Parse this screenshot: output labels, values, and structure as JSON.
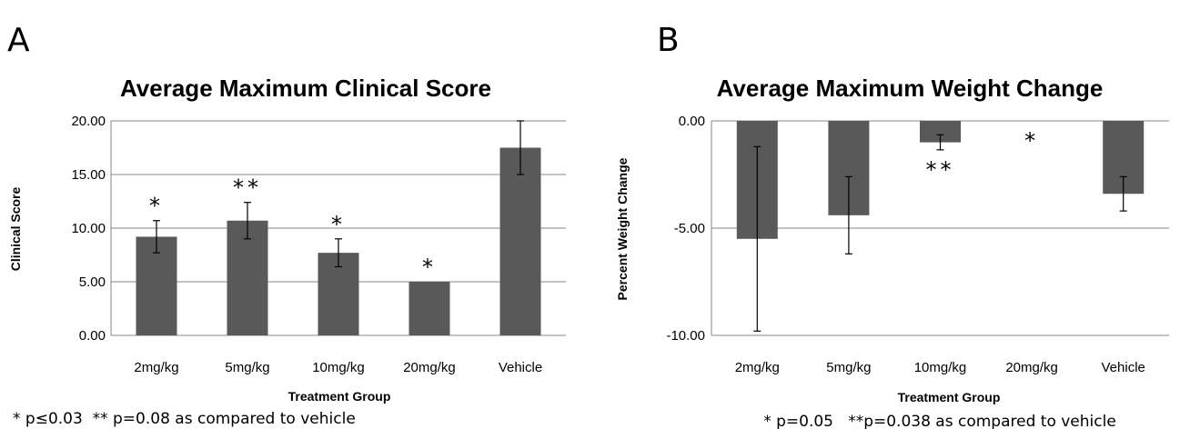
{
  "chart_data": [
    {
      "type": "bar",
      "panel_label": "A",
      "title": "Average Maximum Clinical Score",
      "xlabel": "Treatment Group",
      "ylabel": "Clinical Score",
      "categories": [
        "2mg/kg",
        "5mg/kg",
        "10mg/kg",
        "20mg/kg",
        "Vehicle"
      ],
      "values": [
        9.2,
        10.7,
        7.7,
        5.0,
        17.5
      ],
      "errors": [
        1.5,
        1.7,
        1.3,
        0,
        2.5
      ],
      "annotations": [
        "*",
        "**",
        "*",
        "*",
        ""
      ],
      "ylim": [
        0,
        20
      ],
      "yticks": [
        "0.00",
        "5.00",
        "10.00",
        "15.00",
        "20.00"
      ],
      "grid": true,
      "bar_color": "#595959",
      "footnote": "* p≤0.03  ** p=0.08 as compared to vehicle"
    },
    {
      "type": "bar",
      "panel_label": "B",
      "title": "Average Maximum Weight Change",
      "xlabel": "Treatment Group",
      "ylabel": "Percent Weight Change",
      "categories": [
        "2mg/kg",
        "5mg/kg",
        "10mg/kg",
        "20mg/kg",
        "Vehicle"
      ],
      "values": [
        -5.5,
        -4.4,
        -1.0,
        0,
        -3.4
      ],
      "errors": [
        4.3,
        1.8,
        0.35,
        0,
        0.8
      ],
      "annotations": [
        "",
        "",
        "**",
        "*",
        ""
      ],
      "ylim": [
        -10,
        0
      ],
      "yticks": [
        "-10.00",
        "-5.00",
        "0.00"
      ],
      "grid": true,
      "bar_color": "#595959",
      "footnote": "* p=0.05   **p=0.038 as compared to vehicle"
    }
  ]
}
